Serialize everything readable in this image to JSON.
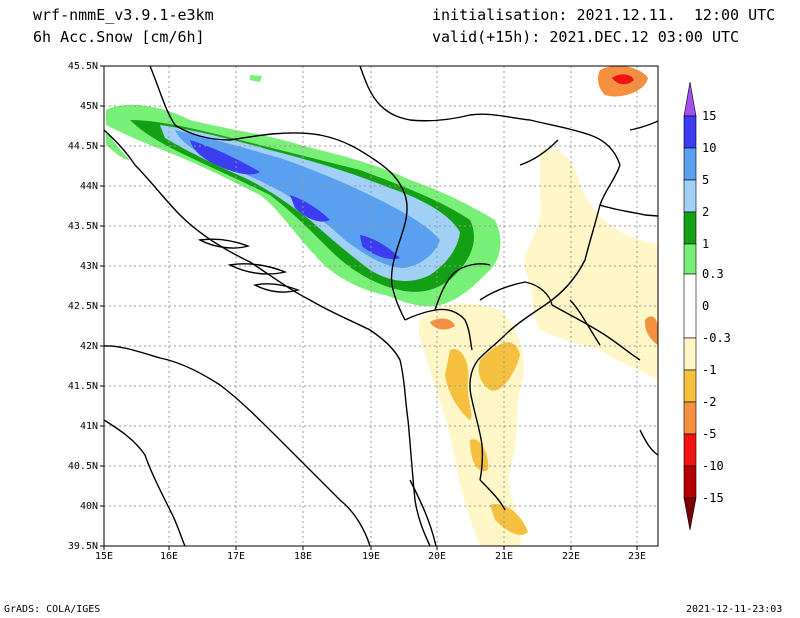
{
  "header": {
    "model": "wrf-nmmE_v3.9.1-e3km",
    "variable": "6h Acc.Snow [cm/6h]",
    "initialisation": "initialisation: 2021.12.11.  12:00 UTC",
    "valid": "valid(+15h): 2021.DEC.12 03:00 UTC"
  },
  "footer": {
    "left": "GrADS: COLA/IGES",
    "right": "2021-12-11-23:03"
  },
  "axes": {
    "lon_labels": [
      "15E",
      "16E",
      "17E",
      "18E",
      "19E",
      "20E",
      "21E",
      "22E",
      "23E"
    ],
    "lat_labels": [
      "45.5N",
      "45N",
      "44.5N",
      "44N",
      "43.5N",
      "43N",
      "42.5N",
      "42N",
      "41.5N",
      "41N",
      "40.5N",
      "40N",
      "39.5N"
    ]
  },
  "colorbar": {
    "labels": [
      "15",
      "10",
      "5",
      "2",
      "1",
      "0.3",
      "0",
      "-0.3",
      "-1",
      "-2",
      "-5",
      "-10",
      "-15"
    ],
    "colors": [
      "#3c3cf0",
      "#5aa0f0",
      "#a0d0f5",
      "#14a014",
      "#78f078",
      "#ffffff",
      "#ffffff",
      "#fff7c8",
      "#f5c040",
      "#f59040",
      "#f01414",
      "#b40000",
      "#8c0000"
    ],
    "top_arrow_color": "#a050f0",
    "bottom_arrow_color": "#780000"
  }
}
